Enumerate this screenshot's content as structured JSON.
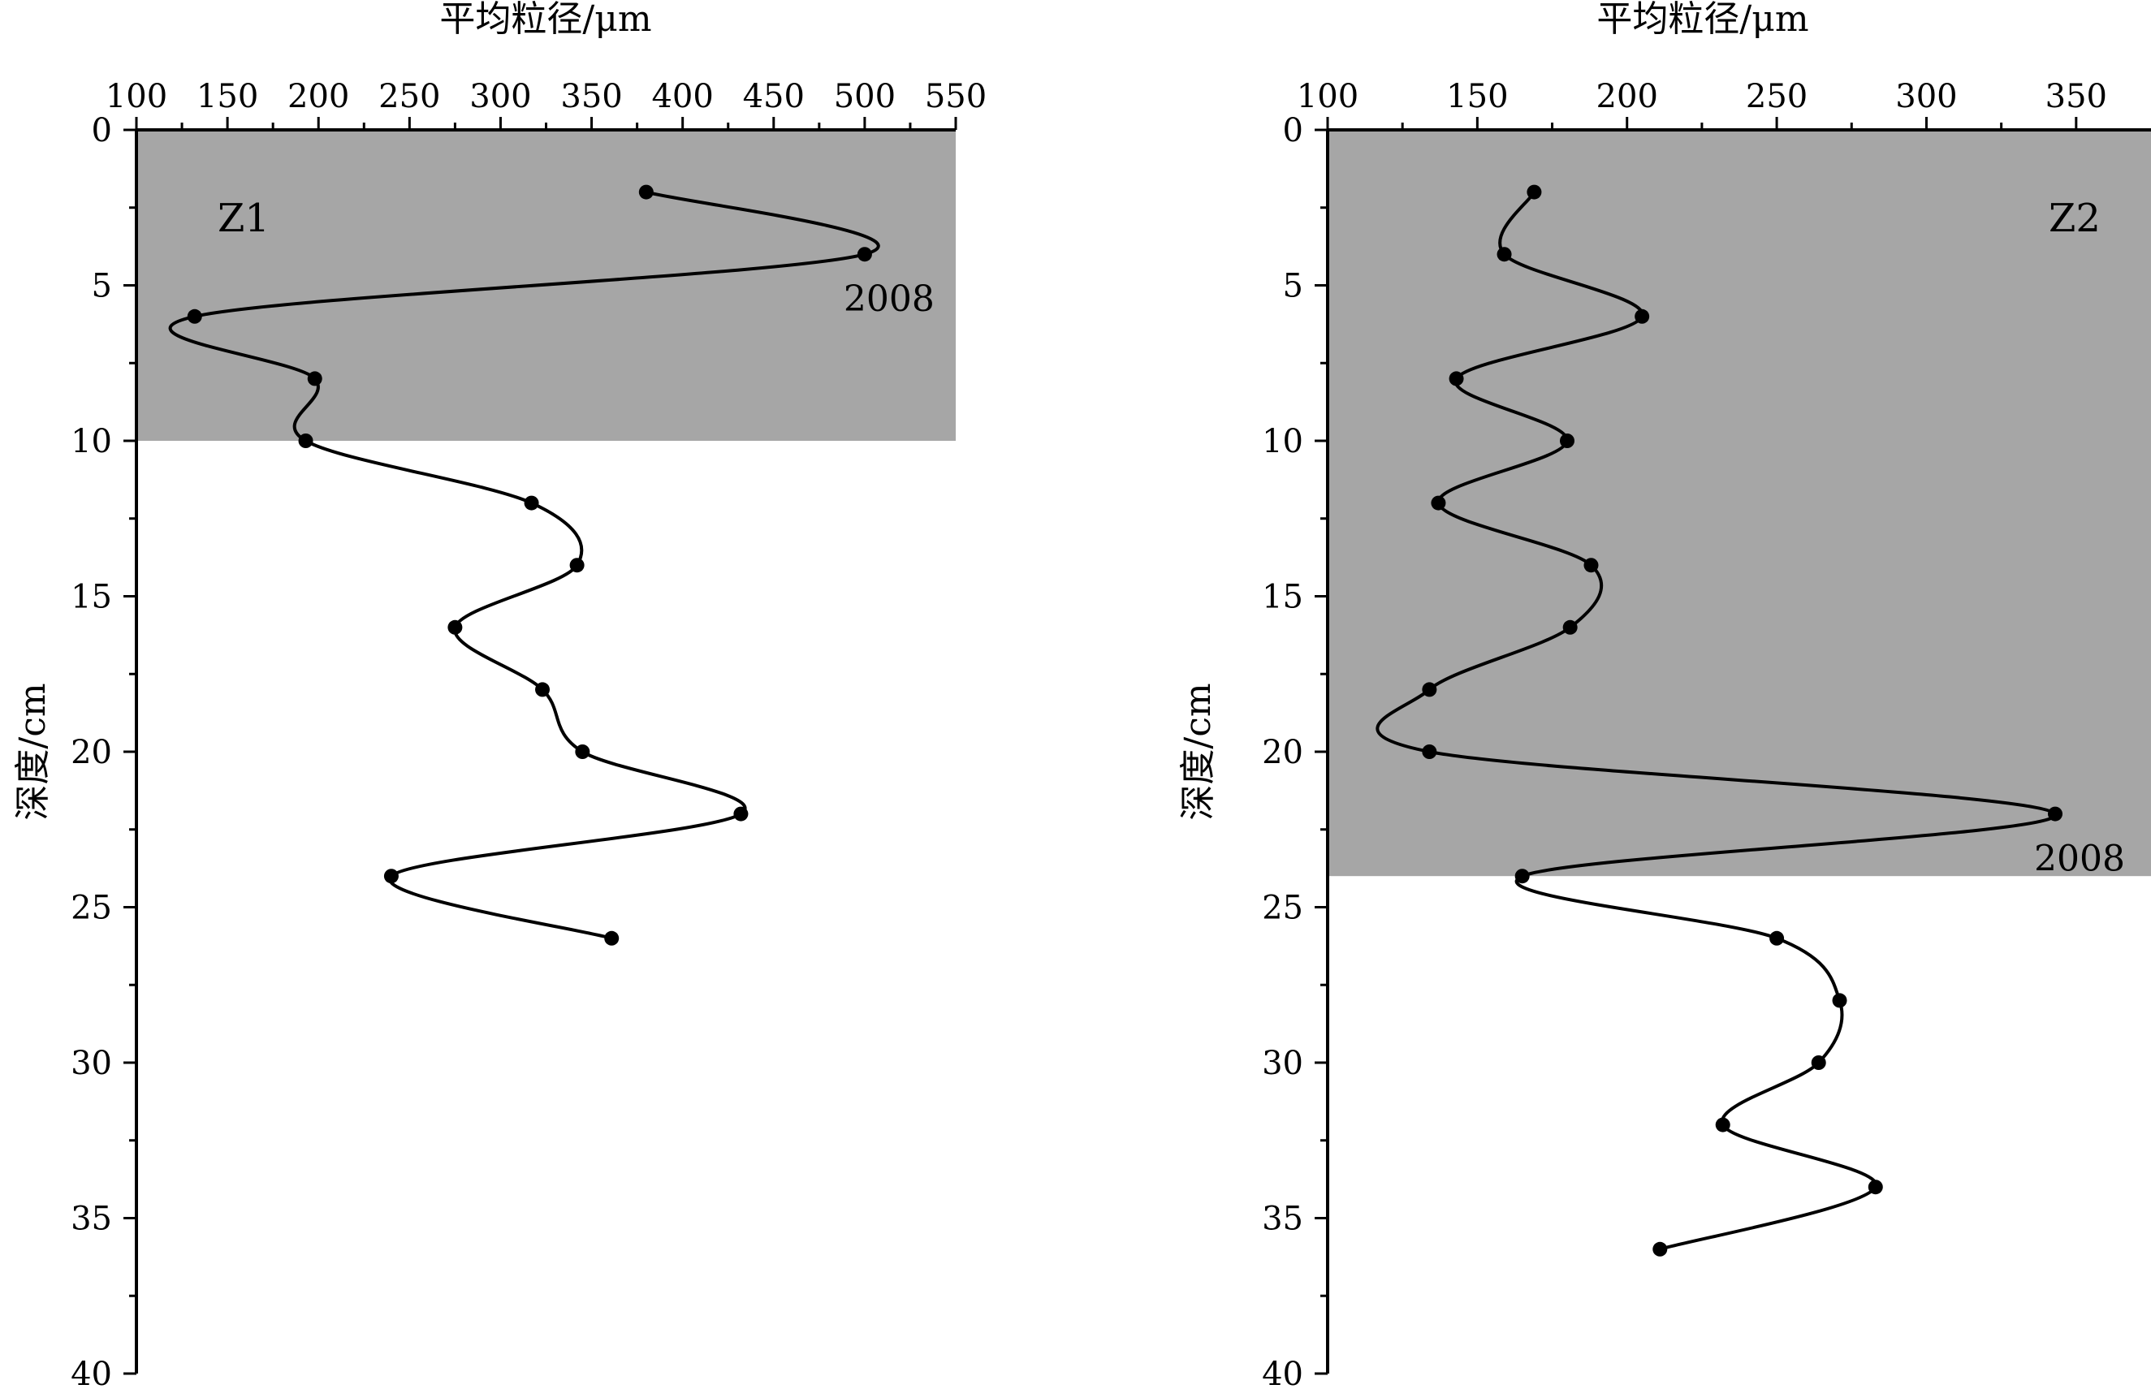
{
  "chart_data": [
    {
      "type": "line",
      "panel_label": "Z1",
      "title": "",
      "xlabel": "平均粒径/μm",
      "ylabel": "深度/cm",
      "xlim": [
        100,
        550
      ],
      "ylim": [
        0,
        40
      ],
      "y_inverted": true,
      "x_axis_position": "top",
      "xticks": [
        100,
        150,
        200,
        250,
        300,
        350,
        400,
        450,
        500,
        550
      ],
      "yticks": [
        0,
        5,
        10,
        15,
        20,
        25,
        30,
        35,
        40
      ],
      "shaded_depth": [
        0,
        10
      ],
      "shade_color": "#a6a6a6",
      "grid": false,
      "series": [
        {
          "x": [
            380,
            500,
            132,
            198,
            193,
            317,
            342,
            275,
            323,
            345,
            432,
            240,
            361
          ],
          "y": [
            2,
            4,
            6,
            8,
            10,
            12,
            14,
            16,
            18,
            20,
            22,
            24,
            26
          ]
        }
      ],
      "annotations": [
        {
          "text": "2008",
          "x": 500,
          "y": 4
        }
      ]
    },
    {
      "type": "line",
      "panel_label": "Z2",
      "title": "",
      "xlabel": "平均粒径/μm",
      "ylabel": "深度/cm",
      "xlim": [
        100,
        375
      ],
      "ylim": [
        0,
        40
      ],
      "y_inverted": true,
      "x_axis_position": "top",
      "xticks": [
        100,
        150,
        200,
        250,
        300,
        350
      ],
      "yticks": [
        0,
        5,
        10,
        15,
        20,
        25,
        30,
        35,
        40
      ],
      "shaded_depth": [
        0,
        24
      ],
      "shade_color": "#a6a6a6",
      "grid": false,
      "series": [
        {
          "x": [
            169,
            159,
            205,
            143,
            180,
            137,
            188,
            181,
            134,
            134,
            343,
            165,
            250,
            271,
            264,
            232,
            283,
            211
          ],
          "y": [
            2,
            4,
            6,
            8,
            10,
            12,
            14,
            16,
            18,
            20,
            22,
            24,
            26,
            28,
            30,
            32,
            34,
            36
          ]
        }
      ],
      "annotations": [
        {
          "text": "2008",
          "x": 343,
          "y": 22
        }
      ]
    }
  ]
}
